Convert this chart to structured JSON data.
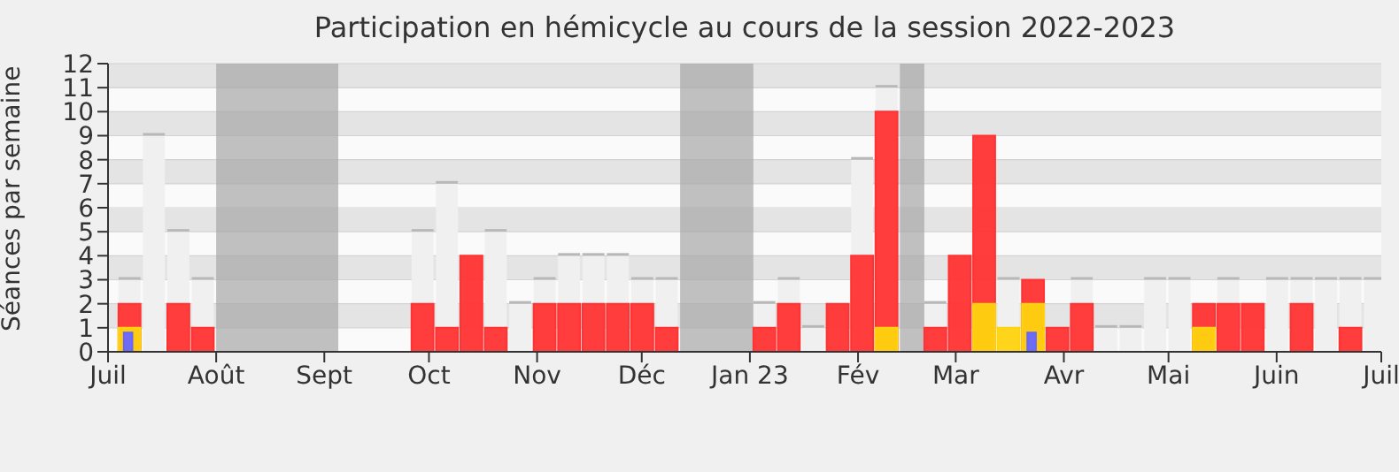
{
  "chart_data": {
    "type": "bar",
    "title": "Participation en hémicycle au cours de la session 2022-2023",
    "ylabel": "Séances par semaine",
    "x": [
      "2022-07-07",
      "2022-07-14",
      "2022-07-21",
      "2022-07-28",
      "2022-08-04",
      "2022-08-11",
      "2022-08-18",
      "2022-08-25",
      "2022-09-01",
      "2022-09-08",
      "2022-09-15",
      "2022-09-22",
      "2022-09-29",
      "2022-10-06",
      "2022-10-13",
      "2022-10-20",
      "2022-10-27",
      "2022-11-03",
      "2022-11-10",
      "2022-11-17",
      "2022-11-24",
      "2022-12-01",
      "2022-12-08",
      "2022-12-15",
      "2022-12-22",
      "2022-12-29",
      "2023-01-05",
      "2023-01-12",
      "2023-01-19",
      "2023-01-26",
      "2023-02-02",
      "2023-02-09",
      "2023-02-16",
      "2023-02-23",
      "2023-03-02",
      "2023-03-09",
      "2023-03-16",
      "2023-03-23",
      "2023-03-30",
      "2023-04-06",
      "2023-04-13",
      "2023-04-20",
      "2023-04-27",
      "2023-05-04",
      "2023-05-11",
      "2023-05-18",
      "2023-05-25",
      "2023-06-01",
      "2023-06-08",
      "2023-06-15",
      "2023-06-22",
      "2023-06-29"
    ],
    "series": [
      {
        "color": "#f0f0f0",
        "values": [
          3,
          9,
          5,
          3,
          0,
          0,
          0,
          0,
          0,
          0,
          0,
          0,
          5,
          7,
          null,
          5,
          2,
          3,
          4,
          4,
          4,
          3,
          3,
          0,
          0,
          0,
          2,
          3,
          1,
          null,
          8,
          11,
          0,
          2,
          null,
          null,
          3,
          null,
          null,
          3,
          1,
          1,
          3,
          3,
          null,
          3,
          null,
          3,
          3,
          3,
          3,
          3
        ]
      },
      {
        "color": "#ff3333",
        "values": [
          2,
          0,
          2,
          1,
          0,
          0,
          0,
          0,
          0,
          0,
          0,
          0,
          2,
          1,
          4,
          1,
          0,
          2,
          2,
          2,
          2,
          2,
          1,
          0,
          0,
          0,
          1,
          2,
          0,
          2,
          4,
          10,
          0,
          1,
          4,
          9,
          null,
          3,
          1,
          2,
          0,
          0,
          0,
          0,
          2,
          2,
          2,
          0,
          2,
          0,
          1,
          0
        ]
      },
      {
        "color": "#ffd30f",
        "values": [
          1,
          0,
          0,
          0,
          0,
          0,
          0,
          0,
          0,
          0,
          0,
          0,
          0,
          0,
          0,
          0,
          0,
          0,
          0,
          0,
          0,
          0,
          0,
          0,
          0,
          0,
          0,
          0,
          0,
          0,
          0,
          1,
          0,
          0,
          0,
          2,
          1,
          2,
          0,
          0,
          0,
          0,
          0,
          0,
          1,
          0,
          0,
          0,
          0,
          0,
          0,
          0
        ]
      },
      {
        "color": "#6666ff",
        "values": [
          0.8,
          0,
          0,
          0,
          0,
          0,
          0,
          0,
          0,
          0,
          0,
          0,
          0,
          0,
          0,
          0,
          0,
          0,
          0,
          0,
          0,
          0,
          0,
          0,
          0,
          0,
          0,
          0,
          0,
          0,
          0,
          0,
          0,
          0,
          0,
          0,
          0,
          0.8,
          0,
          0,
          0,
          0,
          0,
          0,
          0,
          0,
          0,
          0,
          0,
          0,
          0,
          0
        ]
      }
    ],
    "xlim": [
      "2022-07-01",
      "2023-07-01"
    ],
    "xticks": [
      {
        "value": "2022-07-01",
        "label": "Juil"
      },
      {
        "value": "2022-08-01",
        "label": "Août"
      },
      {
        "value": "2022-09-01",
        "label": "Sept"
      },
      {
        "value": "2022-10-01",
        "label": "Oct"
      },
      {
        "value": "2022-11-01",
        "label": "Nov"
      },
      {
        "value": "2022-12-01",
        "label": "Déc"
      },
      {
        "value": "2023-01-01",
        "label": "Jan 23"
      },
      {
        "value": "2023-02-01",
        "label": "Fév"
      },
      {
        "value": "2023-03-01",
        "label": "Mar"
      },
      {
        "value": "2023-04-01",
        "label": "Avr"
      },
      {
        "value": "2023-05-01",
        "label": "Mai"
      },
      {
        "value": "2023-06-01",
        "label": "Juin"
      },
      {
        "value": "2023-07-01",
        "label": "Juil"
      }
    ],
    "ylim": [
      0,
      12
    ],
    "yticks": [
      0,
      1,
      2,
      3,
      4,
      5,
      6,
      7,
      8,
      9,
      10,
      11,
      12
    ],
    "grid": "y",
    "bands": [
      {
        "axis": "x",
        "from": "2022-08-01",
        "to": "2022-09-05",
        "color": "#a6a6a6"
      },
      {
        "axis": "x",
        "from": "2022-12-12",
        "to": "2023-01-02",
        "color": "#a6a6a6"
      },
      {
        "axis": "x",
        "from": "2023-02-13",
        "to": "2023-02-20",
        "color": "#a6a6a6"
      }
    ]
  }
}
